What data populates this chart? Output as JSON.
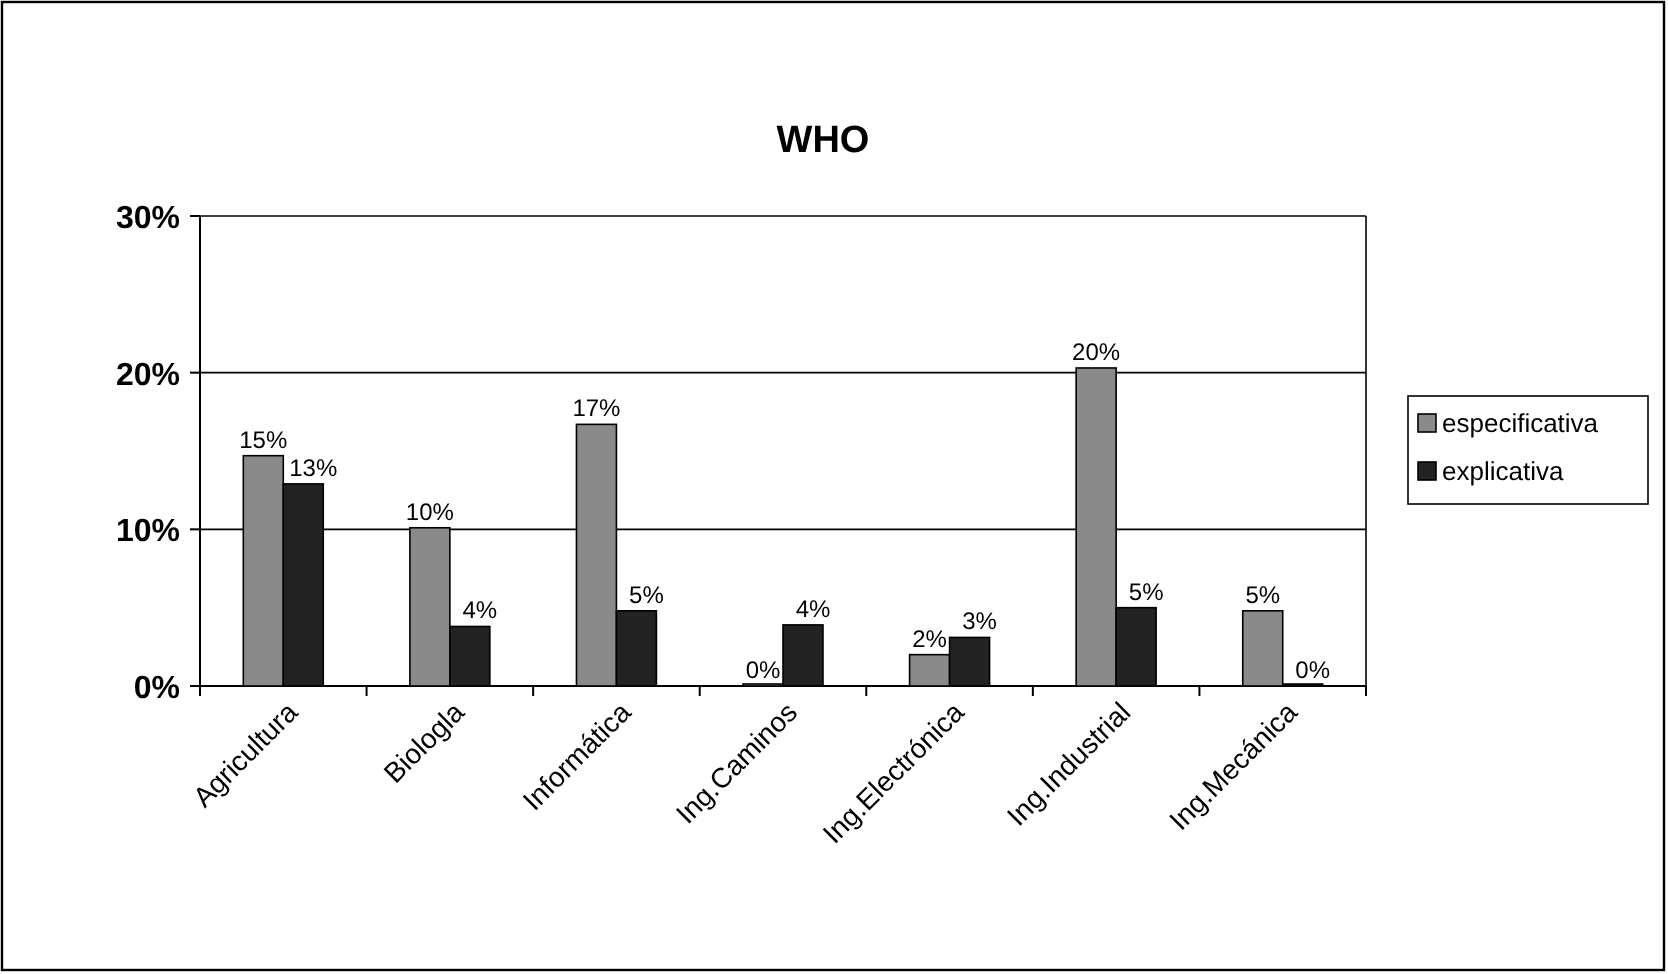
{
  "chart_data": {
    "type": "bar",
    "title": "WHO",
    "categories": [
      "Agricultura",
      "Biologla",
      "Informática",
      "Ing.Caminos",
      "Ing.Electrónica",
      "Ing.Industrial",
      "Ing.Mecánica"
    ],
    "series": [
      {
        "name": "especificativa",
        "color": "#8a8a8a",
        "values": [
          14.7,
          10.1,
          16.7,
          0,
          2,
          20.3,
          4.8
        ],
        "value_labels": [
          "15%",
          "10%",
          "17%",
          "0%",
          "2%",
          "20%",
          "5%"
        ]
      },
      {
        "name": "explicativa",
        "color": "#222222",
        "values": [
          12.9,
          3.8,
          4.8,
          3.9,
          3.1,
          5,
          0
        ],
        "value_labels": [
          "13%",
          "4%",
          "5%",
          "4%",
          "3%",
          "5%",
          "0%"
        ]
      }
    ],
    "ylim": [
      0,
      30
    ],
    "yticks": [
      {
        "value": 0,
        "label": "0%"
      },
      {
        "value": 10,
        "label": "10%"
      },
      {
        "value": 20,
        "label": "20%"
      },
      {
        "value": 30,
        "label": "30%"
      }
    ],
    "grid": "y",
    "legend": "right"
  }
}
